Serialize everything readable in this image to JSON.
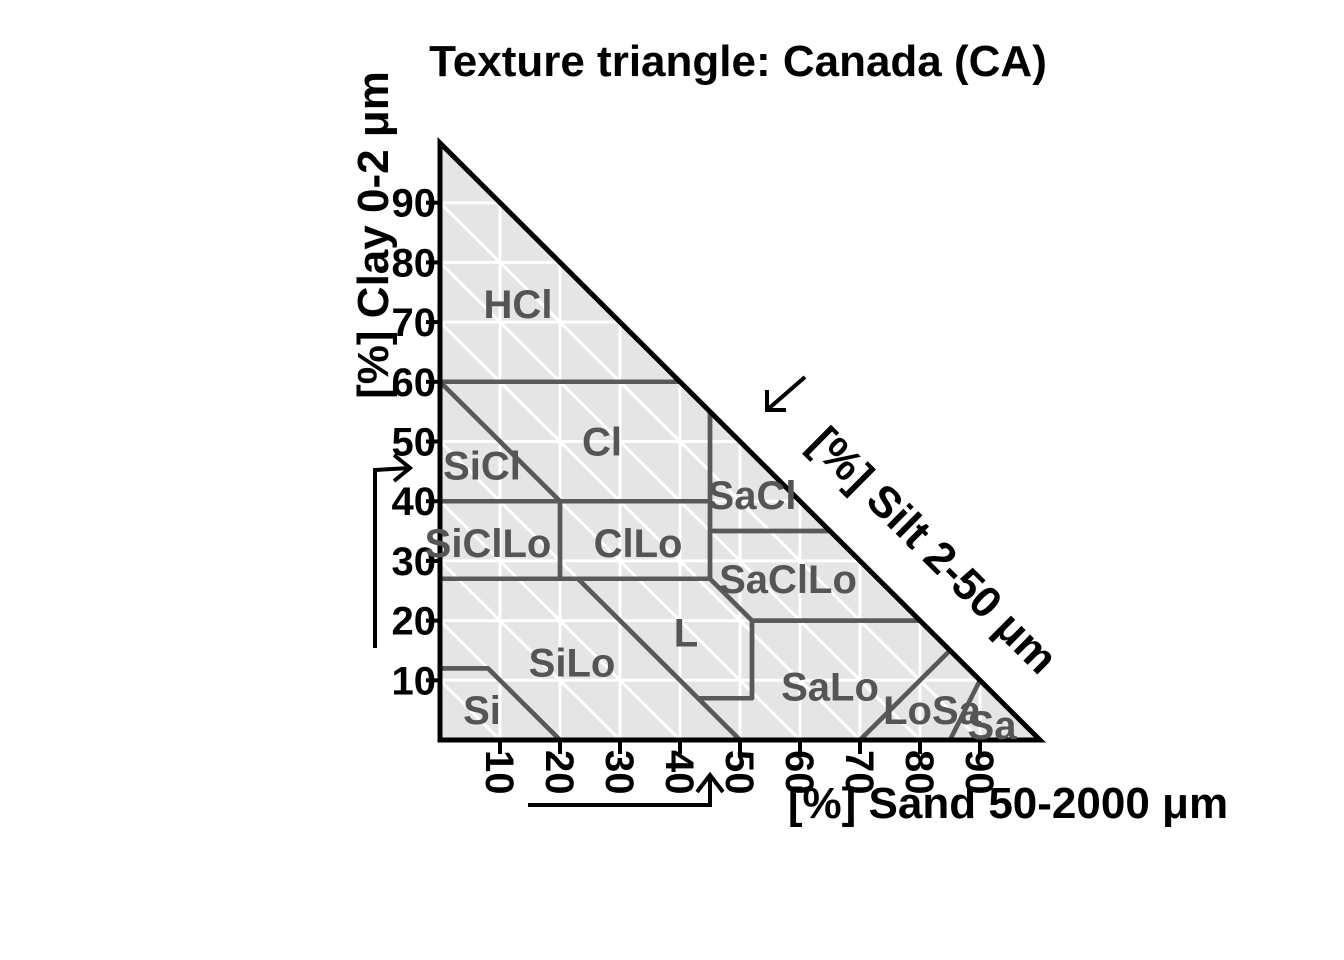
{
  "chart_data": {
    "type": "ternary",
    "title": "Texture triangle: Canada (CA)",
    "axes": {
      "clay": {
        "label": "[%] Clay 0-2 μm",
        "ticks": [
          "10",
          "20",
          "30",
          "40",
          "50",
          "60",
          "70",
          "80",
          "90"
        ]
      },
      "silt": {
        "label": "[%] Silt 2-50 μm"
      },
      "sand": {
        "label": "[%] Sand 50-2000 μm",
        "ticks": [
          "10",
          "20",
          "30",
          "40",
          "50",
          "60",
          "70",
          "80",
          "90"
        ]
      }
    },
    "grid": true,
    "colors": {
      "fill": "#e5e5e5",
      "grid": "#ffffff",
      "boundary": "#595959",
      "frame": "#000000",
      "label": "#555555"
    },
    "classes": [
      {
        "code": "HCl",
        "label_at": {
          "sand": 13,
          "clay": 73
        },
        "polygon": [
          [
            0,
            100
          ],
          [
            0,
            60
          ],
          [
            40,
            60
          ]
        ]
      },
      {
        "code": "Cl",
        "label_at": {
          "sand": 27,
          "clay": 50
        },
        "polygon": [
          [
            0,
            60
          ],
          [
            40,
            60
          ],
          [
            45,
            55
          ],
          [
            45,
            40
          ],
          [
            20,
            40
          ]
        ]
      },
      {
        "code": "SiCl",
        "label_at": {
          "sand": 7,
          "clay": 46
        },
        "polygon": [
          [
            0,
            60
          ],
          [
            20,
            40
          ],
          [
            0,
            40
          ]
        ]
      },
      {
        "code": "SaCl",
        "label_at": {
          "sand": 52,
          "clay": 41
        },
        "polygon": [
          [
            45,
            55
          ],
          [
            65,
            35
          ],
          [
            45,
            35
          ]
        ]
      },
      {
        "code": "SiClLo",
        "label_at": {
          "sand": 8,
          "clay": 33
        },
        "polygon": [
          [
            0,
            40
          ],
          [
            20,
            40
          ],
          [
            20,
            27
          ],
          [
            0,
            27
          ]
        ]
      },
      {
        "code": "ClLo",
        "label_at": {
          "sand": 33,
          "clay": 33
        },
        "polygon": [
          [
            20,
            40
          ],
          [
            45,
            40
          ],
          [
            45,
            27
          ],
          [
            20,
            27
          ]
        ]
      },
      {
        "code": "SaClLo",
        "label_at": {
          "sand": 58,
          "clay": 27
        },
        "polygon": [
          [
            45,
            35
          ],
          [
            65,
            35
          ],
          [
            80,
            20
          ],
          [
            52,
            20
          ],
          [
            45,
            27
          ]
        ]
      },
      {
        "code": "L",
        "label_at": {
          "sand": 41,
          "clay": 18
        },
        "polygon": [
          [
            23,
            27
          ],
          [
            45,
            27
          ],
          [
            52,
            20
          ],
          [
            52,
            7
          ],
          [
            43,
            7
          ]
        ]
      },
      {
        "code": "SiLo",
        "label_at": {
          "sand": 22,
          "clay": 13
        },
        "polygon": [
          [
            0,
            27
          ],
          [
            23,
            27
          ],
          [
            50,
            0
          ],
          [
            20,
            0
          ],
          [
            8,
            12
          ],
          [
            0,
            12
          ]
        ]
      },
      {
        "code": "Si",
        "label_at": {
          "sand": 7,
          "clay": 5
        },
        "polygon": [
          [
            0,
            12
          ],
          [
            8,
            12
          ],
          [
            20,
            0
          ],
          [
            0,
            0
          ]
        ]
      },
      {
        "code": "SaLo",
        "label_at": {
          "sand": 65,
          "clay": 9
        },
        "polygon": [
          [
            52,
            20
          ],
          [
            80,
            20
          ],
          [
            85,
            15
          ],
          [
            70,
            0
          ],
          [
            50,
            0
          ],
          [
            43,
            7
          ],
          [
            52,
            7
          ]
        ]
      },
      {
        "code": "LoSa",
        "label_at": {
          "sand": 82,
          "clay": 5
        },
        "polygon": [
          [
            70,
            0
          ],
          [
            85,
            15
          ],
          [
            90,
            10
          ],
          [
            85,
            0
          ]
        ]
      },
      {
        "code": "Sa",
        "label_at": {
          "sand": 92,
          "clay": 2.5
        },
        "polygon": [
          [
            85,
            0
          ],
          [
            90,
            10
          ],
          [
            100,
            0
          ]
        ]
      }
    ]
  }
}
